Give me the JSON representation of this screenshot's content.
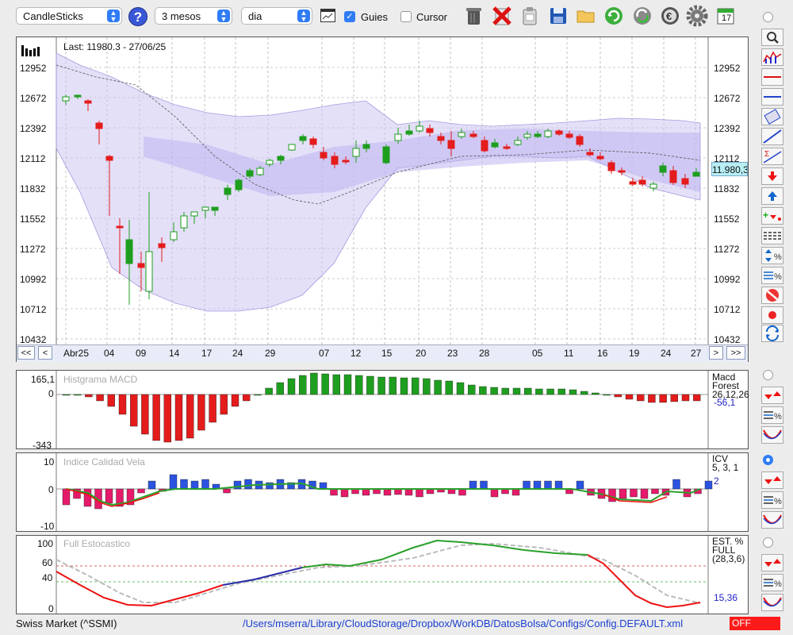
{
  "toolbar": {
    "chart_type": "CandleSticks",
    "period": "3 mesos",
    "interval": "dia",
    "guides_label": "Guies",
    "guides_checked": true,
    "cursor_label": "Cursor",
    "cursor_checked": false,
    "calendar_day": "17"
  },
  "main_chart": {
    "last_label": "Last: 11980.3 - 27/06/25",
    "current_price_tag": "11.980,3",
    "y_ticks": [
      "12952",
      "12672",
      "12392",
      "12112",
      "11832",
      "11552",
      "11272",
      "10992",
      "10712",
      "10432"
    ],
    "nav": {
      "first": "<<",
      "prev": "<",
      "next": ">",
      "last": ">>"
    },
    "x_ticks": [
      "Abr25",
      "04",
      "09",
      "14",
      "17",
      "24",
      "29",
      "07",
      "12",
      "15",
      "20",
      "23",
      "28",
      "05",
      "11",
      "16",
      "19",
      "24",
      "27"
    ],
    "colors": {
      "up": "#1e9e1e",
      "down": "#e41c1c",
      "band": "#cdc6f2",
      "grid": "#9a9a9a"
    }
  },
  "macd": {
    "title": "Histgrama MACD",
    "ytop": "165,1",
    "yzero": "0",
    "ybottom": "-343",
    "label1": "Macd",
    "label2": "Forest",
    "params": "26,12,26",
    "value": "-56,1"
  },
  "icv": {
    "title": "Indice Calidad Vela",
    "ytop": "10",
    "yzero": "0",
    "ybottom": "-10",
    "label": "ICV",
    "params": "5, 3, 1",
    "value": "2"
  },
  "stoch": {
    "title": "Full Estocastico",
    "y100": "100",
    "y60": "60",
    "y40": "40",
    "y0": "0",
    "label1": "EST. %",
    "label2": "FULL",
    "params": "(28,3,6)",
    "value": "15,36"
  },
  "status": {
    "market": "Swiss Market (^SSMI)",
    "path": "/Users/mserra/Library/CloudStorage/Dropbox/WorkDB/DatosBolsa/Configs/Config.DEFAULT.xml",
    "off": "OFF"
  }
}
